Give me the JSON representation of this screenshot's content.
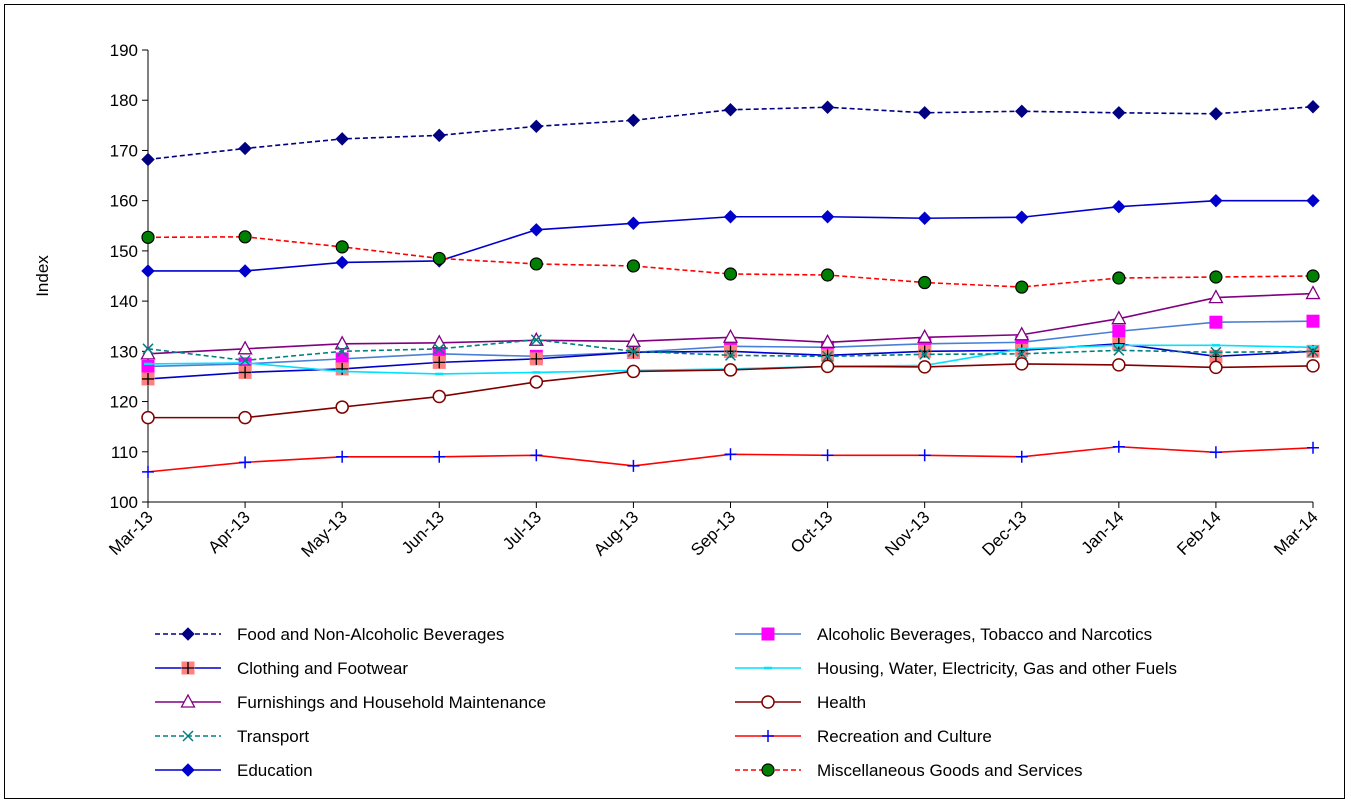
{
  "chart_data": {
    "type": "line",
    "title": "",
    "xlabel": "",
    "ylabel": "Index",
    "ylim": [
      100,
      190
    ],
    "yticks": [
      "100",
      "110",
      "120",
      "130",
      "140",
      "150",
      "160",
      "170",
      "180",
      "190"
    ],
    "categories": [
      "Mar-13",
      "Apr-13",
      "May-13",
      "Jun-13",
      "Jul-13",
      "Aug-13",
      "Sep-13",
      "Oct-13",
      "Nov-13",
      "Dec-13",
      "Jan-14",
      "Feb-14",
      "Mar-14"
    ],
    "grid": false,
    "legend_position": "bottom",
    "series": [
      {
        "name": "Food and Non-Alcoholic Beverages",
        "color": "#000080",
        "dash": "dashed",
        "marker": "diamond",
        "values": [
          168.2,
          170.4,
          172.3,
          173.0,
          174.8,
          176.0,
          178.1,
          178.6,
          177.5,
          177.8,
          177.5,
          177.3,
          178.7
        ]
      },
      {
        "name": "Alcoholic Beverages, Tobacco and Narcotics",
        "color": "#4a7fd6",
        "dash": "solid",
        "marker": "square-magenta",
        "values": [
          127.0,
          127.5,
          128.5,
          129.5,
          129.0,
          129.8,
          131.0,
          130.8,
          131.5,
          131.8,
          134.0,
          135.8,
          136.0
        ]
      },
      {
        "name": "Clothing and Footwear",
        "color": "#0000cc",
        "dash": "solid",
        "marker": "square-plus",
        "values": [
          124.5,
          125.8,
          126.5,
          127.8,
          128.5,
          129.8,
          130.0,
          129.2,
          130.0,
          130.2,
          131.5,
          129.0,
          130.0
        ]
      },
      {
        "name": "Housing, Water, Electricity, Gas and other Fuels",
        "color": "#00e0ff",
        "dash": "solid",
        "marker": "dash",
        "values": [
          127.5,
          127.7,
          126.0,
          125.5,
          125.8,
          126.2,
          126.5,
          127.0,
          127.2,
          130.5,
          131.2,
          131.2,
          130.8
        ]
      },
      {
        "name": "Furnishings and Household Maintenance",
        "color": "#800080",
        "dash": "solid",
        "marker": "triangle",
        "values": [
          129.5,
          130.5,
          131.5,
          131.7,
          132.2,
          132.0,
          132.8,
          131.8,
          132.8,
          133.3,
          136.5,
          140.7,
          141.5
        ]
      },
      {
        "name": "Health",
        "color": "#800000",
        "dash": "solid",
        "marker": "circle-open",
        "values": [
          116.8,
          116.8,
          118.9,
          121.0,
          123.9,
          126.0,
          126.3,
          127.0,
          126.9,
          127.5,
          127.3,
          126.8,
          127.1
        ]
      },
      {
        "name": "Transport",
        "color": "#008080",
        "dash": "dashed",
        "marker": "x",
        "values": [
          130.5,
          128.2,
          130.0,
          130.5,
          132.3,
          130.0,
          129.2,
          129.0,
          129.4,
          129.5,
          130.2,
          129.8,
          130.0
        ]
      },
      {
        "name": "Recreation and Culture",
        "color": "#ff0000",
        "dash": "solid",
        "marker": "plus",
        "values": [
          106.0,
          107.9,
          109.0,
          109.0,
          109.3,
          107.2,
          109.5,
          109.3,
          109.3,
          109.0,
          111.0,
          109.9,
          110.8
        ]
      },
      {
        "name": "Education",
        "color": "#0000cc",
        "dash": "solid",
        "marker": "diamond",
        "values": [
          146.0,
          146.0,
          147.7,
          148.0,
          154.2,
          155.5,
          156.8,
          156.8,
          156.5,
          156.7,
          158.8,
          160.0,
          160.0
        ]
      },
      {
        "name": "Miscellaneous Goods and Services",
        "color": "#ff0000",
        "dash": "dashed",
        "marker": "circle-green",
        "values": [
          152.7,
          152.8,
          150.8,
          148.5,
          147.4,
          147.0,
          145.4,
          145.2,
          143.7,
          142.8,
          144.6,
          144.8,
          145.0
        ]
      }
    ]
  }
}
